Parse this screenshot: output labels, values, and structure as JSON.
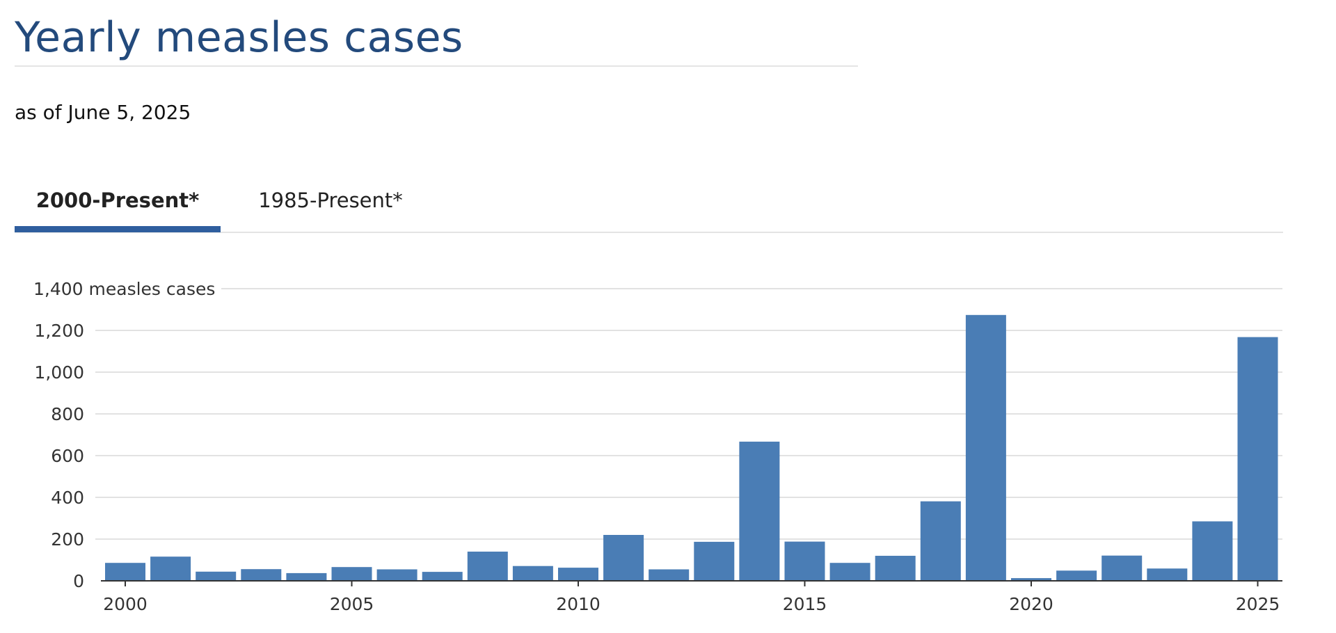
{
  "page": {
    "title": "Yearly measles cases",
    "subtitle": "as of June 5, 2025"
  },
  "tabs": [
    {
      "label": "2000-Present*",
      "active": true
    },
    {
      "label": "1985-Present*",
      "active": false
    }
  ],
  "colors": {
    "bar": "#4a7db5",
    "title": "#234a7c",
    "tab_underline": "#2f5e9e"
  },
  "chart_data": {
    "type": "bar",
    "x": [
      2000,
      2001,
      2002,
      2003,
      2004,
      2005,
      2006,
      2007,
      2008,
      2009,
      2010,
      2011,
      2012,
      2013,
      2014,
      2015,
      2016,
      2017,
      2018,
      2019,
      2020,
      2021,
      2022,
      2023,
      2024,
      2025
    ],
    "values": [
      86,
      116,
      44,
      56,
      37,
      66,
      55,
      43,
      140,
      71,
      63,
      220,
      55,
      187,
      667,
      188,
      86,
      120,
      381,
      1274,
      13,
      49,
      121,
      59,
      285,
      1168
    ],
    "xticks": [
      "2000",
      "2005",
      "2010",
      "2015",
      "2020",
      "2025"
    ],
    "yticks": [
      "0",
      "200",
      "400",
      "600",
      "800",
      "1,000",
      "1,200",
      "1,400 measles cases"
    ],
    "ylim": [
      0,
      1400
    ],
    "grid": true,
    "legend": "none"
  }
}
